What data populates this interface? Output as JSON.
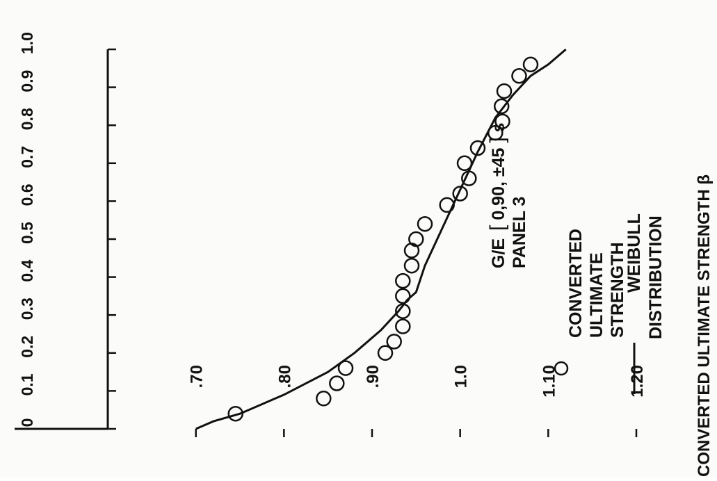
{
  "chart_data": {
    "type": "scatter",
    "orientation": "rotated-90-ccw",
    "title": "",
    "xlabel": "CONVERTED ULTIMATE STRENGTH β",
    "ylabel": "",
    "xlim": [
      0.6,
      1.2
    ],
    "ylim": [
      0,
      1.0
    ],
    "x_ticks": [
      ".70",
      ".80",
      ".90",
      "1.0",
      "1.10",
      "1.20"
    ],
    "y_ticks": [
      "0",
      "0.1",
      "0.2",
      "0.3",
      "0.4",
      "0.5",
      "0.6",
      "0.7",
      "0.8",
      "0.9",
      "1.0"
    ],
    "grid": false,
    "legend_position": "upper-left",
    "series": [
      {
        "name": "WEIBULL DISTRIBUTION",
        "kind": "line",
        "x": [
          0.7,
          0.72,
          0.75,
          0.8,
          0.85,
          0.88,
          0.91,
          0.93,
          0.94,
          0.95,
          0.96,
          0.98,
          1.0,
          1.02,
          1.04,
          1.06,
          1.08,
          1.1,
          1.12
        ],
        "y": [
          0.0,
          0.02,
          0.04,
          0.09,
          0.15,
          0.2,
          0.26,
          0.31,
          0.34,
          0.36,
          0.43,
          0.53,
          0.63,
          0.73,
          0.82,
          0.88,
          0.93,
          0.96,
          1.0
        ]
      },
      {
        "name": "CONVERTED ULTIMATE STRENGTH",
        "kind": "markers",
        "marker": "open-circle",
        "x": [
          0.745,
          0.845,
          0.86,
          0.87,
          0.915,
          0.925,
          0.935,
          0.935,
          0.935,
          0.935,
          0.945,
          0.945,
          0.95,
          0.96,
          0.985,
          1.0,
          1.01,
          1.005,
          1.02,
          1.04,
          1.048,
          1.047,
          1.05,
          1.067,
          1.08
        ],
        "y": [
          0.04,
          0.08,
          0.12,
          0.16,
          0.2,
          0.23,
          0.27,
          0.31,
          0.35,
          0.39,
          0.43,
          0.47,
          0.5,
          0.54,
          0.59,
          0.62,
          0.66,
          0.7,
          0.74,
          0.78,
          0.81,
          0.85,
          0.89,
          0.93,
          0.96
        ]
      }
    ]
  },
  "legend": {
    "line_label_1": "WEIBULL",
    "line_label_2": "DISTRIBUTION",
    "marker_label_1": "CONVERTED",
    "marker_label_2": "ULTIMATE",
    "marker_label_3": "STRENGTH"
  },
  "annotation": {
    "prefix": "G/E",
    "layup": "0,90, ±45",
    "suffix": " s",
    "line2": "PANEL 3"
  },
  "colors": {
    "ink": "#111111",
    "paper": "#fbfbf9"
  }
}
